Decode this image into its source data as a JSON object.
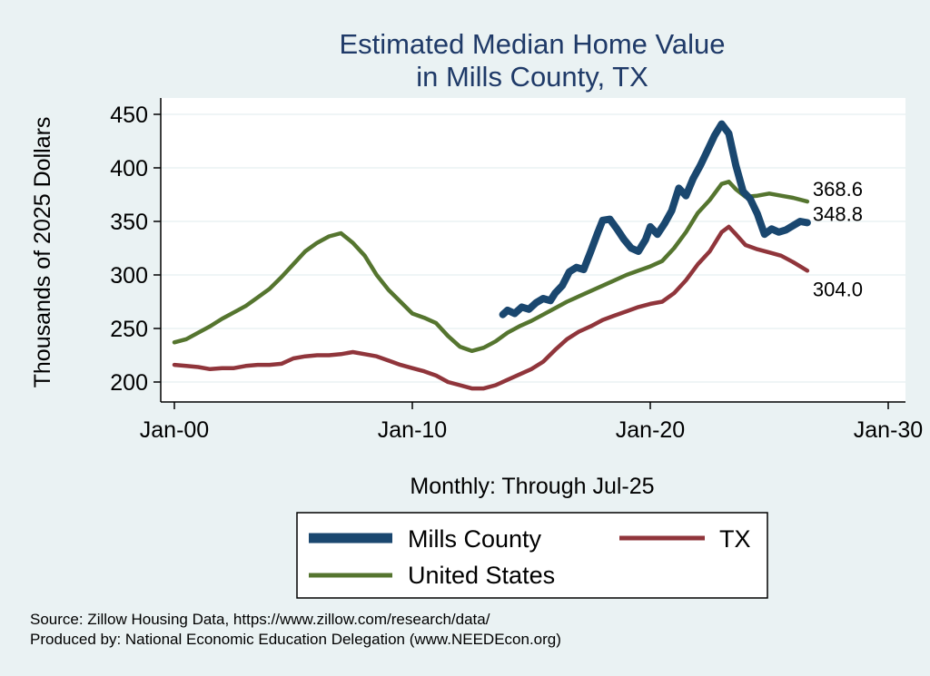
{
  "chart_data": {
    "type": "line",
    "title": [
      "Estimated Median Home Value",
      "in Mills County, TX"
    ],
    "xlabel": "Monthly: Through Jul-25",
    "ylabel": "Thousands of 2025 Dollars",
    "x_ticks": [
      {
        "label": "Jan-00",
        "year": 2000
      },
      {
        "label": "Jan-10",
        "year": 2010
      },
      {
        "label": "Jan-20",
        "year": 2020
      },
      {
        "label": "Jan-30",
        "year": 2030
      }
    ],
    "y_ticks": [
      200,
      250,
      300,
      350,
      400,
      450
    ],
    "xlim": [
      1999.4,
      2030
    ],
    "ylim": [
      188,
      462
    ],
    "grid": true,
    "legend_position": "bottom",
    "series": [
      {
        "name": "Mills County",
        "color": "#1a476f",
        "width": "thick",
        "end_label": "348.8",
        "points": [
          [
            2013.8,
            263
          ],
          [
            2014.0,
            267
          ],
          [
            2014.3,
            264
          ],
          [
            2014.6,
            270
          ],
          [
            2014.9,
            268
          ],
          [
            2015.2,
            274
          ],
          [
            2015.5,
            278
          ],
          [
            2015.8,
            276
          ],
          [
            2016.0,
            283
          ],
          [
            2016.3,
            290
          ],
          [
            2016.6,
            303
          ],
          [
            2016.9,
            307
          ],
          [
            2017.2,
            305
          ],
          [
            2017.5,
            322
          ],
          [
            2017.8,
            340
          ],
          [
            2018.0,
            351
          ],
          [
            2018.3,
            352
          ],
          [
            2018.6,
            343
          ],
          [
            2018.9,
            333
          ],
          [
            2019.2,
            325
          ],
          [
            2019.5,
            322
          ],
          [
            2019.8,
            333
          ],
          [
            2020.0,
            345
          ],
          [
            2020.3,
            338
          ],
          [
            2020.6,
            348
          ],
          [
            2020.9,
            360
          ],
          [
            2021.2,
            381
          ],
          [
            2021.5,
            374
          ],
          [
            2021.8,
            390
          ],
          [
            2022.1,
            402
          ],
          [
            2022.4,
            416
          ],
          [
            2022.7,
            430
          ],
          [
            2023.0,
            441
          ],
          [
            2023.3,
            432
          ],
          [
            2023.6,
            402
          ],
          [
            2023.9,
            378
          ],
          [
            2024.2,
            371
          ],
          [
            2024.5,
            357
          ],
          [
            2024.8,
            338
          ],
          [
            2025.1,
            343
          ],
          [
            2025.4,
            340
          ],
          [
            2025.7,
            342
          ],
          [
            2026.0,
            346
          ],
          [
            2026.3,
            350
          ],
          [
            2026.6,
            348.8
          ]
        ]
      },
      {
        "name": "TX",
        "color": "#90353b",
        "width": "medium",
        "end_label": "304.0",
        "points": [
          [
            2000.0,
            216
          ],
          [
            2000.5,
            215
          ],
          [
            2001.0,
            214
          ],
          [
            2001.5,
            212
          ],
          [
            2002.0,
            213
          ],
          [
            2002.5,
            213
          ],
          [
            2003.0,
            215
          ],
          [
            2003.5,
            216
          ],
          [
            2004.0,
            216
          ],
          [
            2004.5,
            217
          ],
          [
            2005.0,
            222
          ],
          [
            2005.5,
            224
          ],
          [
            2006.0,
            225
          ],
          [
            2006.5,
            225
          ],
          [
            2007.0,
            226
          ],
          [
            2007.5,
            228
          ],
          [
            2008.0,
            226
          ],
          [
            2008.5,
            224
          ],
          [
            2009.0,
            220
          ],
          [
            2009.5,
            216
          ],
          [
            2010.0,
            213
          ],
          [
            2010.5,
            210
          ],
          [
            2011.0,
            206
          ],
          [
            2011.5,
            200
          ],
          [
            2012.0,
            197
          ],
          [
            2012.5,
            194
          ],
          [
            2013.0,
            194
          ],
          [
            2013.5,
            197
          ],
          [
            2014.0,
            202
          ],
          [
            2014.5,
            207
          ],
          [
            2015.0,
            212
          ],
          [
            2015.5,
            219
          ],
          [
            2016.0,
            230
          ],
          [
            2016.5,
            240
          ],
          [
            2017.0,
            247
          ],
          [
            2017.5,
            252
          ],
          [
            2018.0,
            258
          ],
          [
            2018.5,
            262
          ],
          [
            2019.0,
            266
          ],
          [
            2019.5,
            270
          ],
          [
            2020.0,
            273
          ],
          [
            2020.5,
            275
          ],
          [
            2021.0,
            283
          ],
          [
            2021.5,
            295
          ],
          [
            2022.0,
            310
          ],
          [
            2022.5,
            322
          ],
          [
            2023.0,
            340
          ],
          [
            2023.3,
            345
          ],
          [
            2023.6,
            338
          ],
          [
            2024.0,
            328
          ],
          [
            2024.5,
            324
          ],
          [
            2025.0,
            321
          ],
          [
            2025.5,
            318
          ],
          [
            2026.0,
            312
          ],
          [
            2026.6,
            304.0
          ]
        ]
      },
      {
        "name": "United States",
        "color": "#55752f",
        "width": "medium",
        "end_label": "368.6",
        "points": [
          [
            2000.0,
            237
          ],
          [
            2000.5,
            240
          ],
          [
            2001.0,
            246
          ],
          [
            2001.5,
            252
          ],
          [
            2002.0,
            259
          ],
          [
            2002.5,
            265
          ],
          [
            2003.0,
            271
          ],
          [
            2003.5,
            279
          ],
          [
            2004.0,
            287
          ],
          [
            2004.5,
            298
          ],
          [
            2005.0,
            310
          ],
          [
            2005.5,
            322
          ],
          [
            2006.0,
            330
          ],
          [
            2006.5,
            336
          ],
          [
            2007.0,
            339
          ],
          [
            2007.5,
            330
          ],
          [
            2008.0,
            318
          ],
          [
            2008.5,
            300
          ],
          [
            2009.0,
            286
          ],
          [
            2009.5,
            275
          ],
          [
            2010.0,
            264
          ],
          [
            2010.5,
            260
          ],
          [
            2011.0,
            255
          ],
          [
            2011.5,
            243
          ],
          [
            2012.0,
            233
          ],
          [
            2012.5,
            229
          ],
          [
            2013.0,
            232
          ],
          [
            2013.5,
            238
          ],
          [
            2014.0,
            246
          ],
          [
            2014.5,
            252
          ],
          [
            2015.0,
            257
          ],
          [
            2015.5,
            263
          ],
          [
            2016.0,
            269
          ],
          [
            2016.5,
            275
          ],
          [
            2017.0,
            280
          ],
          [
            2017.5,
            285
          ],
          [
            2018.0,
            290
          ],
          [
            2018.5,
            295
          ],
          [
            2019.0,
            300
          ],
          [
            2019.5,
            304
          ],
          [
            2020.0,
            308
          ],
          [
            2020.5,
            313
          ],
          [
            2021.0,
            325
          ],
          [
            2021.5,
            340
          ],
          [
            2022.0,
            358
          ],
          [
            2022.5,
            370
          ],
          [
            2023.0,
            385
          ],
          [
            2023.3,
            387
          ],
          [
            2023.6,
            380
          ],
          [
            2024.0,
            373
          ],
          [
            2024.5,
            374
          ],
          [
            2025.0,
            376
          ],
          [
            2025.5,
            374
          ],
          [
            2026.0,
            372
          ],
          [
            2026.6,
            368.6
          ]
        ]
      }
    ]
  },
  "source": "Source: Zillow Housing Data, https://www.zillow.com/research/data/",
  "producer": "Produced by: National Economic Education Delegation (www.NEEDEcon.org)"
}
